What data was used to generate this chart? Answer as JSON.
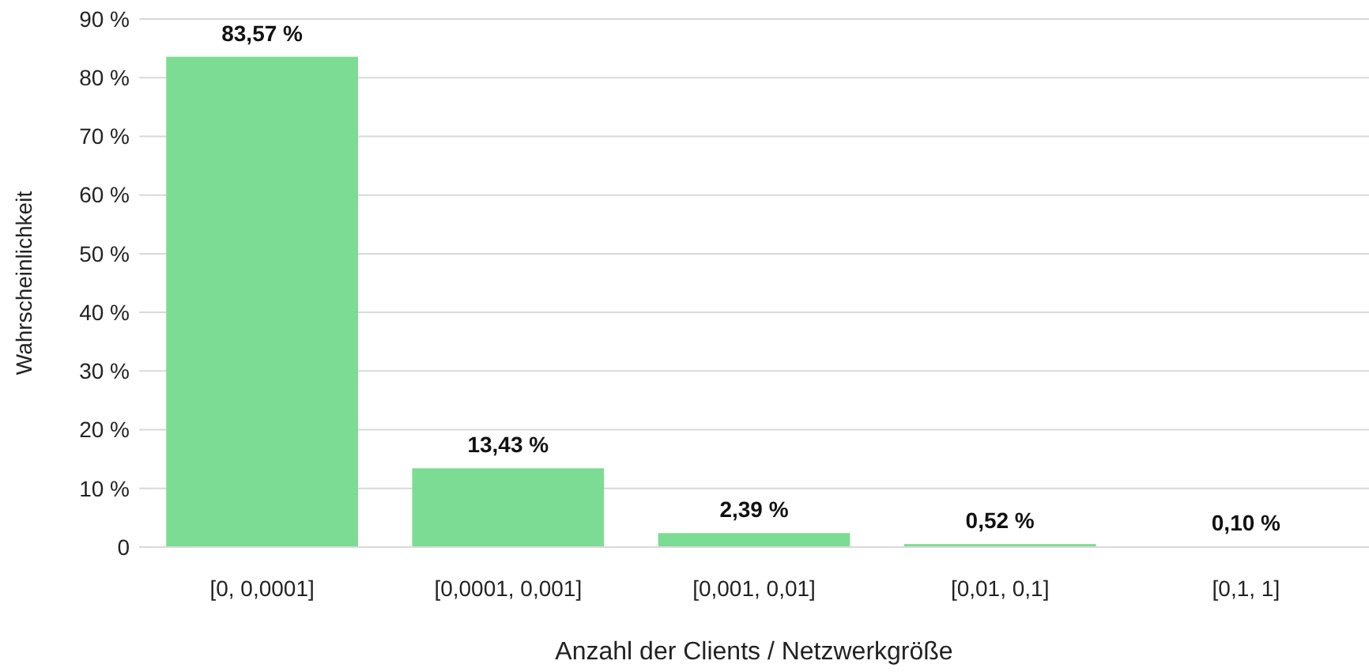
{
  "chart_data": {
    "type": "bar",
    "xlabel": "Anzahl der Clients / Netzwerkgröße",
    "ylabel": "Wahrscheinlichkeit",
    "categories": [
      "[0, 0,0001]",
      "[0,0001, 0,001]",
      "[0,001, 0,01]",
      "[0,01, 0,1]",
      "[0,1, 1]"
    ],
    "values": [
      83.57,
      13.43,
      2.39,
      0.52,
      0.1
    ],
    "value_labels": [
      "83,57 %",
      "13,43 %",
      "2,39 %",
      "0,52 %",
      "0,10 %"
    ],
    "color": "#7ddc93",
    "ylim": [
      0,
      90
    ],
    "yticks": [
      0,
      {
        "value": 10,
        "label": "10 %"
      },
      {
        "value": 20,
        "label": "20 %"
      },
      {
        "value": 30,
        "label": "30 %"
      },
      {
        "value": 40,
        "label": "40 %"
      },
      {
        "value": 50,
        "label": "50 %"
      },
      {
        "value": 60,
        "label": "60 %"
      },
      {
        "value": 70,
        "label": "70 %"
      },
      {
        "value": 80,
        "label": "80 %"
      },
      {
        "value": 90,
        "label": "90 %"
      }
    ],
    "grid": "y"
  }
}
